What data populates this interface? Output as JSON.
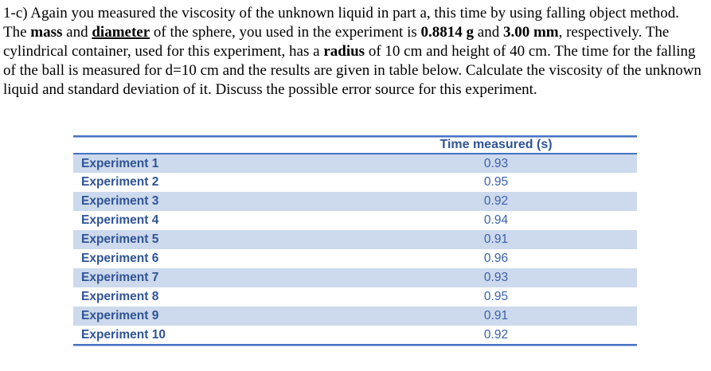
{
  "paragraph": {
    "segments": [
      {
        "text": "1-c) Again you measured the viscosity of the unknown liquid in part a, this time by using falling object method. The "
      },
      {
        "text": "mass",
        "bold": true
      },
      {
        "text": " and "
      },
      {
        "text": "diameter",
        "bold": true,
        "underline": true
      },
      {
        "text": " of the sphere, you used in the experiment is "
      },
      {
        "text": "0.8814 g",
        "bold": true
      },
      {
        "text": " and "
      },
      {
        "text": "3.00 mm",
        "bold": true
      },
      {
        "text": ", respectively. The cylindrical container, used for this experiment, has a "
      },
      {
        "text": "radius",
        "bold": true
      },
      {
        "text": " of 10 cm and height of 40 cm. The time for the falling of the ball is measured for d=10 cm and the results are given in table below. Calculate the viscosity of the unknown liquid and standard deviation of it. Discuss the possible error source for this experiment."
      }
    ]
  },
  "table": {
    "value_header": "Time measured (s)",
    "rows": [
      {
        "label": "Experiment 1",
        "value": "0.93"
      },
      {
        "label": "Experiment 2",
        "value": "0.95"
      },
      {
        "label": "Experiment 3",
        "value": "0.92"
      },
      {
        "label": "Experiment 4",
        "value": "0.94"
      },
      {
        "label": "Experiment 5",
        "value": "0.91"
      },
      {
        "label": "Experiment 6",
        "value": "0.96"
      },
      {
        "label": "Experiment 7",
        "value": "0.93"
      },
      {
        "label": "Experiment 8",
        "value": "0.95"
      },
      {
        "label": "Experiment 9",
        "value": "0.91"
      },
      {
        "label": "Experiment 10",
        "value": "0.92"
      }
    ]
  },
  "colors": {
    "accent_border": "#4472C4",
    "accent_border_light": "#9DB3DD",
    "label_text": "#2F5496",
    "value_text": "#3A62A9",
    "stripe_bg": "#CDD9EC"
  }
}
